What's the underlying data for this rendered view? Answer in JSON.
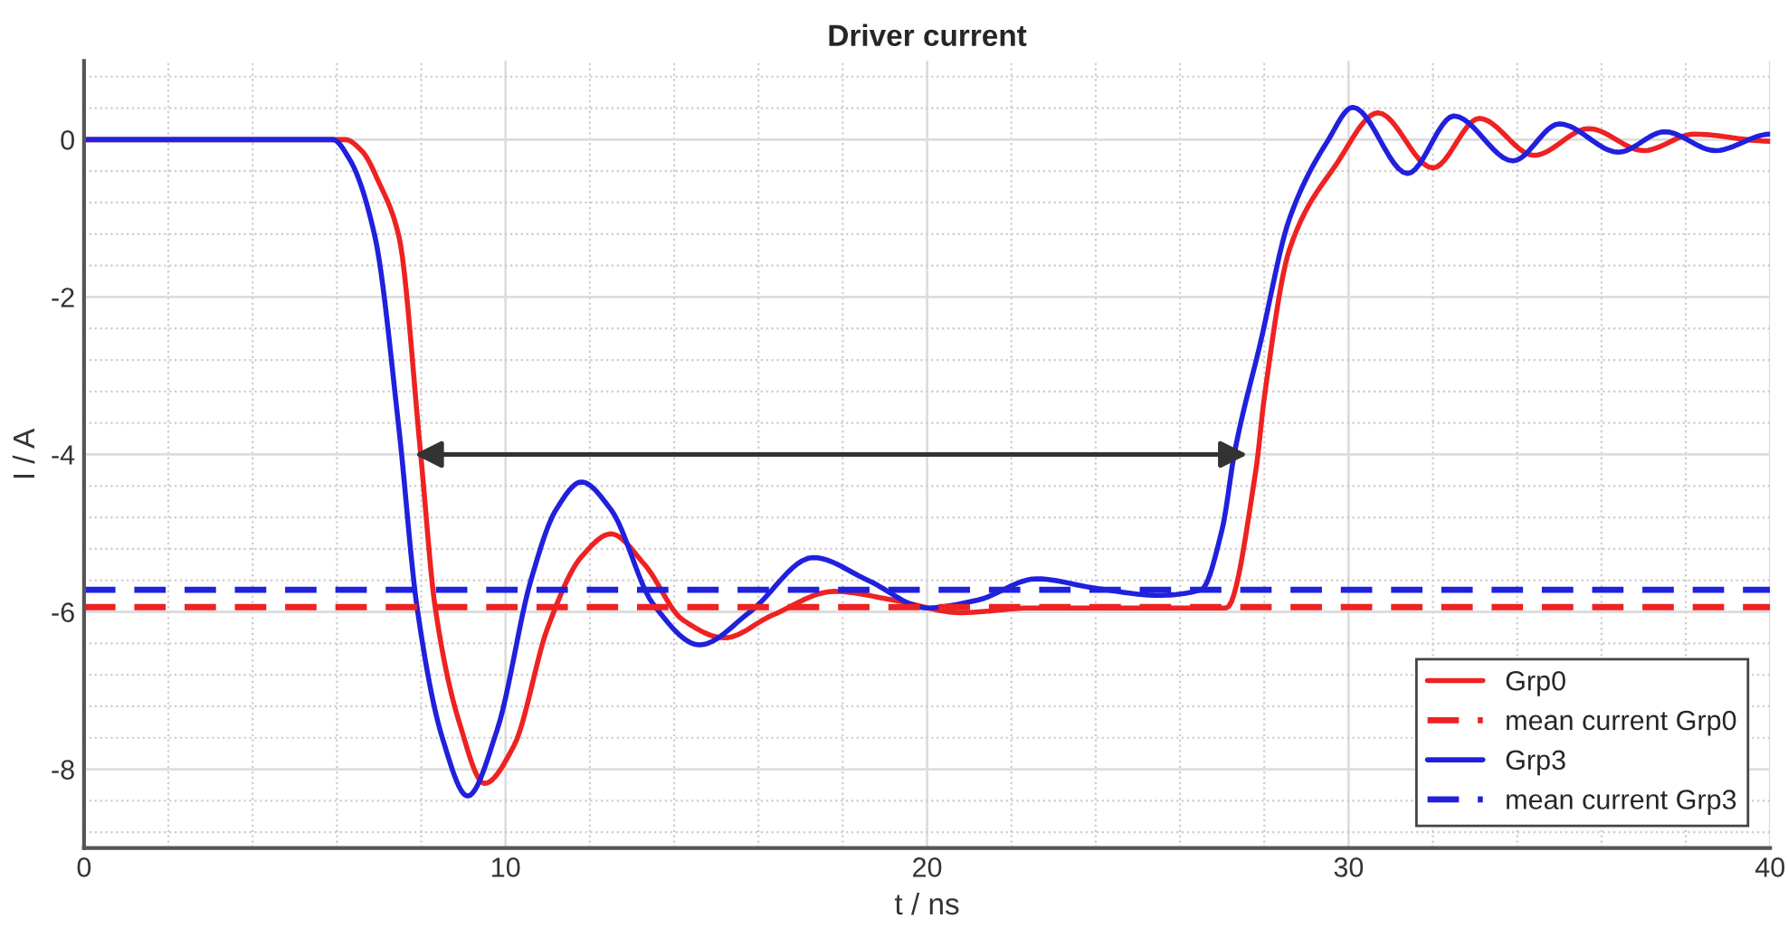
{
  "chart_data": {
    "type": "line",
    "title": "Driver current",
    "xlabel": "t / ns",
    "ylabel": "I / A",
    "xlim": [
      0,
      40
    ],
    "xticks": [
      0,
      10,
      20,
      30,
      40
    ],
    "ylim": [
      -9,
      1
    ],
    "yticks": [
      -8,
      -6,
      -4,
      -2,
      0
    ],
    "grid": true,
    "legend": "bottom right",
    "line_style": "solid",
    "marker": "none",
    "series": [
      {
        "name": "Grp0",
        "color": "#ee2222",
        "x": [
          0,
          6.2,
          6.6,
          7.0,
          7.47,
          7.98,
          8.33,
          8.9,
          9.5,
          10.2,
          11.0,
          11.8,
          12.5,
          13.3,
          14.2,
          15.2,
          16.3,
          17.8,
          19.2,
          20.8,
          22.5,
          25,
          27.1,
          27.8,
          28.0,
          28.6,
          29.7,
          30.7,
          32.0,
          33.1,
          34.4,
          35.7,
          37.0,
          38.2,
          40
        ],
        "values": [
          0,
          0,
          -0.15,
          -0.55,
          -1.23,
          -3.96,
          -5.94,
          -7.4,
          -8.18,
          -7.7,
          -6.2,
          -5.3,
          -5.01,
          -5.4,
          -6.1,
          -6.33,
          -6.05,
          -5.74,
          -5.85,
          -6.01,
          -5.95,
          -5.95,
          -5.95,
          -4.2,
          -3.28,
          -1.39,
          -0.32,
          0.34,
          -0.36,
          0.27,
          -0.2,
          0.14,
          -0.14,
          0.07,
          -0.02
        ]
      },
      {
        "name": "Grp3",
        "color": "#2020dd",
        "x": [
          0,
          5.9,
          6.3,
          6.9,
          7.47,
          7.9,
          8.5,
          9.1,
          9.8,
          10.6,
          11.2,
          11.8,
          12.5,
          13.5,
          14.6,
          15.8,
          17.3,
          18.6,
          20.0,
          21.2,
          22.6,
          24.0,
          25.5,
          26.5,
          27.0,
          27.3,
          27.9,
          28.6,
          29.5,
          30.1,
          31.4,
          32.5,
          33.9,
          35.0,
          36.4,
          37.5,
          38.7,
          40
        ],
        "values": [
          0,
          0,
          -0.25,
          -1.23,
          -3.67,
          -5.94,
          -7.6,
          -8.34,
          -7.5,
          -5.6,
          -4.7,
          -4.35,
          -4.7,
          -5.9,
          -6.42,
          -6.0,
          -5.31,
          -5.6,
          -5.95,
          -5.85,
          -5.58,
          -5.7,
          -5.79,
          -5.72,
          -4.95,
          -3.96,
          -2.6,
          -1.0,
          -0.02,
          0.41,
          -0.43,
          0.3,
          -0.27,
          0.2,
          -0.16,
          0.1,
          -0.14,
          0.07
        ]
      }
    ],
    "ref_lines": [
      {
        "axis": "y",
        "value": -5.94,
        "label": "mean current Grp0",
        "color": "#ee2222",
        "line_style": "dashed"
      },
      {
        "axis": "y",
        "value": -5.72,
        "label": "mean current Grp3",
        "color": "#2020dd",
        "line_style": "dashed"
      }
    ]
  }
}
